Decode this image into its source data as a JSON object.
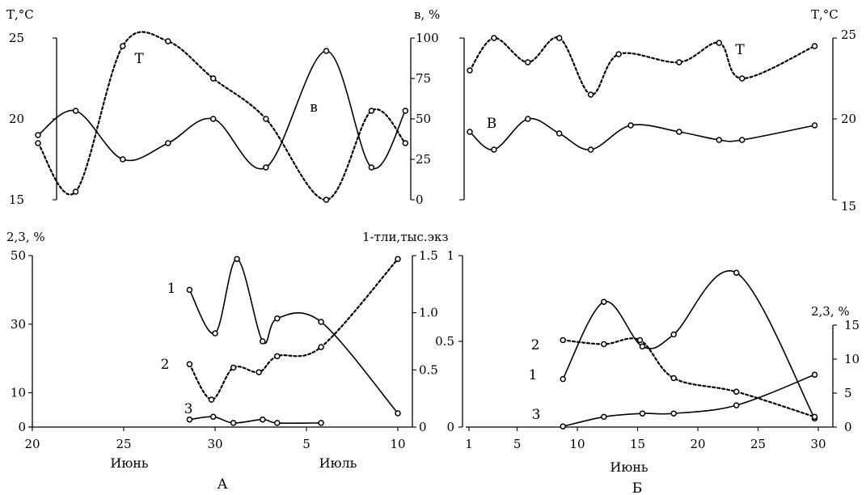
{
  "chart_data": [
    {
      "id": "A-top",
      "type": "line",
      "xlim": [
        20,
        40
      ],
      "x_ticks": [],
      "left_axis": {
        "label": "Т,°С",
        "ticks": [
          "15",
          "20",
          "25"
        ],
        "ylim": [
          15,
          25
        ]
      },
      "right_axis": {
        "label": "в, %",
        "ticks": [
          "0",
          "25",
          "50",
          "75",
          "100"
        ],
        "ylim": [
          0,
          100
        ]
      },
      "series": [
        {
          "name": "Т",
          "axis": "left",
          "style": "dashed",
          "x": [
            20.3,
            22.3,
            24.8,
            27.2,
            29.6,
            32.4,
            35.6,
            38.0,
            39.8
          ],
          "y": [
            18.5,
            15.5,
            24.5,
            24.8,
            22.5,
            20.0,
            15.0,
            20.5,
            18.5
          ]
        },
        {
          "name": "в",
          "axis": "right",
          "style": "solid",
          "x": [
            20.3,
            22.3,
            24.8,
            27.2,
            29.6,
            32.4,
            35.6,
            38.0,
            39.8
          ],
          "y": [
            40,
            55,
            25,
            35,
            50,
            20,
            92,
            20,
            55
          ]
        }
      ],
      "labels": [
        "Т",
        "в"
      ]
    },
    {
      "id": "B-top",
      "type": "line",
      "xlim": [
        1,
        30
      ],
      "x_ticks": [],
      "left_axis": {
        "label": "",
        "ticks": [],
        "ylim": [
          0,
          100
        ]
      },
      "right_axis": {
        "label": "Т,°С",
        "ticks": [
          "15",
          "20",
          "25"
        ],
        "ylim": [
          15,
          25
        ]
      },
      "series": [
        {
          "name": "Т",
          "axis": "right",
          "style": "dashed",
          "x": [
            1.2,
            3.2,
            6.0,
            8.6,
            11.2,
            13.5,
            18.5,
            21.8,
            23.7,
            29.7
          ],
          "y": [
            23.0,
            25.0,
            23.5,
            25.0,
            21.5,
            24.0,
            23.5,
            24.7,
            22.5,
            24.5
          ]
        },
        {
          "name": "В",
          "axis": "left",
          "style": "solid",
          "x": [
            1.2,
            3.2,
            6.0,
            8.6,
            11.2,
            14.5,
            18.5,
            21.8,
            23.7,
            29.7
          ],
          "y": [
            42,
            31,
            50,
            41,
            31,
            46,
            42,
            37,
            37,
            46
          ]
        }
      ],
      "labels": [
        "Т",
        "В"
      ]
    },
    {
      "id": "A-bottom",
      "type": "line",
      "title": "А",
      "xlim": [
        20,
        40
      ],
      "x_ticks": [
        "20",
        "25",
        "30",
        "5",
        "10"
      ],
      "x_tick_values": [
        20,
        25,
        30,
        35,
        40
      ],
      "xlabel_left": "Июнь",
      "xlabel_right": "Июль",
      "left_axis": {
        "label": "2,3, %",
        "ticks": [
          "0",
          "10",
          "30",
          "50"
        ],
        "ylim": [
          0,
          50
        ]
      },
      "right_axis": {
        "label": "1-тли,тыс.экз",
        "ticks": [
          "0",
          "0.5",
          "1.0",
          "1.5"
        ],
        "ylim": [
          0,
          1.5
        ]
      },
      "series": [
        {
          "name": "1",
          "axis": "right",
          "style": "solid",
          "x": [
            28.6,
            30.0,
            31.2,
            32.6,
            33.4,
            35.8,
            40.0
          ],
          "y": [
            1.2,
            0.82,
            1.47,
            0.75,
            0.95,
            0.92,
            0.12
          ]
        },
        {
          "name": "2",
          "axis": "right",
          "style": "dashed",
          "x": [
            28.6,
            29.8,
            31.0,
            32.4,
            33.4,
            35.8,
            40.0
          ],
          "y": [
            0.55,
            0.24,
            0.52,
            0.48,
            0.62,
            0.7,
            1.47
          ]
        },
        {
          "name": "3",
          "axis": "left",
          "style": "solid",
          "x": [
            28.6,
            29.9,
            31.0,
            32.6,
            33.4,
            35.8
          ],
          "y": [
            2.2,
            3.0,
            1.2,
            2.2,
            1.2,
            1.2
          ]
        }
      ],
      "labels": [
        "1",
        "2",
        "3"
      ]
    },
    {
      "id": "B-bottom",
      "type": "line",
      "title": "Б",
      "xlim": [
        1,
        30
      ],
      "x_ticks": [
        "1",
        "5",
        "10",
        "15",
        "20",
        "25",
        "30"
      ],
      "x_tick_values": [
        1,
        5,
        10,
        15,
        20,
        25,
        30
      ],
      "xlabel": "Июнь",
      "left_axis": {
        "label": "",
        "ticks": [
          "0",
          "0.5",
          "1"
        ],
        "ylim": [
          0,
          1
        ]
      },
      "right_axis": {
        "label": "2,3, %",
        "ticks": [
          "0",
          "5",
          "10",
          "15"
        ],
        "ylim": [
          0,
          15
        ]
      },
      "series": [
        {
          "name": "1",
          "axis": "left",
          "style": "solid",
          "x": [
            8.8,
            12.2,
            15.4,
            18.0,
            23.2,
            29.7
          ],
          "y": [
            0.28,
            0.73,
            0.47,
            0.54,
            0.9,
            0.05
          ]
        },
        {
          "name": "2",
          "axis": "right",
          "style": "dashed",
          "x": [
            8.8,
            12.2,
            15.2,
            18.0,
            23.2,
            29.7
          ],
          "y": [
            12.8,
            12.2,
            12.8,
            7.2,
            5.2,
            1.5
          ]
        },
        {
          "name": "3",
          "axis": "right",
          "style": "solid",
          "x": [
            8.8,
            12.2,
            15.4,
            18.0,
            23.2,
            29.7
          ],
          "y": [
            0.1,
            1.5,
            2.0,
            2.0,
            3.2,
            7.7
          ]
        }
      ],
      "labels": [
        "2",
        "1",
        "3"
      ]
    }
  ]
}
